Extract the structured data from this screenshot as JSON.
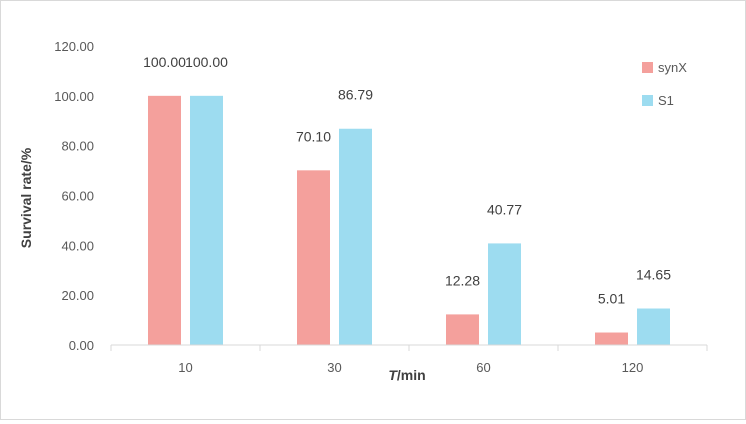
{
  "chart_data": {
    "type": "bar",
    "categories": [
      "10",
      "30",
      "60",
      "120"
    ],
    "series": [
      {
        "name": "synX",
        "color": "#f4a09c",
        "values": [
          100.0,
          70.1,
          12.28,
          5.01
        ],
        "labels": [
          "100.00",
          "70.10",
          "12.28",
          "5.01"
        ]
      },
      {
        "name": "S1",
        "color": "#9ddcf0",
        "values": [
          100.0,
          86.79,
          40.77,
          14.65
        ],
        "labels": [
          "100.00",
          "86.79",
          "40.77",
          "14.65"
        ]
      }
    ],
    "xlabel_italic": "T",
    "xlabel_rest": "/min",
    "ylabel": "Survival rate/%",
    "ylim": [
      0,
      120
    ],
    "yticks": [
      "0.00",
      "20.00",
      "40.00",
      "60.00",
      "80.00",
      "100.00",
      "120.00"
    ],
    "grid": false,
    "legend_position": "top-right"
  }
}
